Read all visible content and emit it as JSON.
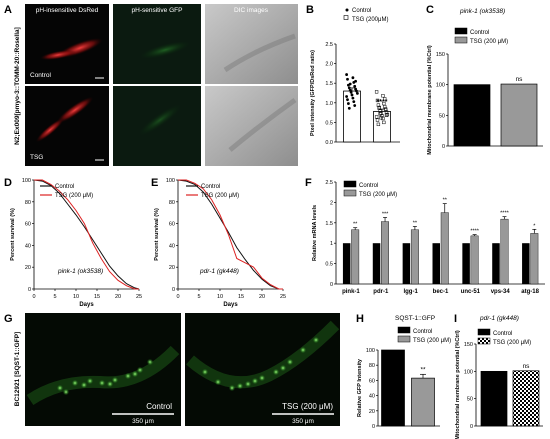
{
  "panels": {
    "A": {
      "letter": "A",
      "col_titles": [
        "pH-insensitive DsRed",
        "pH-sensitive GFP",
        "DIC images"
      ],
      "row_title": "N2;Ex009[pmyo-3::TOMM-20::Rosella]",
      "row_labels": [
        "Control",
        "TSG"
      ]
    },
    "B": {
      "letter": "B"
    },
    "C": {
      "letter": "C",
      "strain": "pink-1 (ok3538)"
    },
    "D": {
      "letter": "D",
      "strain": "pink-1 (ok3538)"
    },
    "E": {
      "letter": "E",
      "strain": "pdr-1 (gk448)"
    },
    "F": {
      "letter": "F"
    },
    "G": {
      "letter": "G",
      "row_title": "BC12921 [SQST-1::GFP]",
      "labels": [
        "Control",
        "TSG (200 μM)"
      ],
      "scale": [
        "350 μm",
        "350 μm"
      ]
    },
    "H": {
      "letter": "H",
      "title": "SQST-1::GFP"
    },
    "I": {
      "letter": "I",
      "strain": "pdr-1 (gk448)"
    }
  },
  "colors": {
    "control": "#111111",
    "tsg": "#dd2222",
    "gray": "#999999"
  },
  "chart_data": [
    {
      "id": "B",
      "type": "bar",
      "categories": [
        "Control",
        "TSG (200μM)"
      ],
      "values": [
        1.3,
        0.78
      ],
      "errors": [
        0.08,
        0.06
      ],
      "ylabel": "Pixel intensity (GFP/DsRed ratio)",
      "ylim": [
        0.0,
        2.5
      ],
      "yticks": [
        "0.0",
        "0.5",
        "1.0",
        "1.5",
        "2.0",
        "2.5"
      ],
      "legend": [
        "Control",
        "TSG (200μM)"
      ],
      "annotations": [
        "****"
      ],
      "scatter": [
        [
          1.72,
          1.64,
          1.6,
          1.52,
          1.45,
          1.42,
          1.38,
          1.35,
          1.32,
          1.3,
          1.27,
          1.24,
          1.2,
          1.16,
          1.12,
          1.08,
          1.03,
          0.98,
          0.93,
          0.86,
          1.55,
          1.48
        ],
        [
          1.28,
          1.18,
          1.06,
          0.98,
          0.94,
          0.9,
          0.86,
          0.82,
          0.79,
          0.76,
          0.73,
          0.7,
          0.67,
          0.64,
          0.6,
          0.56,
          0.5,
          0.45,
          1.1,
          0.88,
          0.84,
          0.72,
          0.68,
          0.62
        ]
      ]
    },
    {
      "id": "C",
      "type": "bar",
      "categories": [
        "Control",
        "TSG (200 μM)"
      ],
      "values": [
        100,
        101
      ],
      "ylabel": "Mitochondrial membrane potential (%Ctrl)",
      "ylim": [
        0,
        150
      ],
      "yticks": [
        "0",
        "50",
        "100",
        "150"
      ],
      "legend": [
        "Control",
        "TSG (200 μM)"
      ],
      "annotations": [
        "ns"
      ]
    },
    {
      "id": "D",
      "type": "line",
      "xlabel": "Days",
      "ylabel": "Percent survival (%)",
      "xlim": [
        0,
        25
      ],
      "ylim": [
        0,
        100
      ],
      "xticks": [
        "0",
        "5",
        "10",
        "15",
        "20",
        "25"
      ],
      "yticks": [
        "0",
        "20",
        "40",
        "60",
        "80",
        "100"
      ],
      "series": [
        {
          "name": "Control",
          "x": [
            0,
            2,
            4,
            6,
            8,
            10,
            12,
            14,
            16,
            18,
            20,
            22,
            24,
            25
          ],
          "y": [
            100,
            99,
            95,
            88,
            78,
            68,
            57,
            45,
            33,
            21,
            12,
            5,
            1,
            0
          ]
        },
        {
          "name": "TSG (200 μM)",
          "x": [
            0,
            2,
            4,
            6,
            8,
            10,
            12,
            14,
            16,
            18,
            20,
            22,
            24,
            25
          ],
          "y": [
            100,
            100,
            96,
            90,
            82,
            72,
            60,
            42,
            28,
            16,
            8,
            3,
            0,
            0
          ]
        }
      ]
    },
    {
      "id": "E",
      "type": "line",
      "xlabel": "Days",
      "ylabel": "Percent survival (%)",
      "xlim": [
        0,
        25
      ],
      "ylim": [
        0,
        100
      ],
      "xticks": [
        "0",
        "5",
        "10",
        "15",
        "20",
        "25"
      ],
      "yticks": [
        "0",
        "20",
        "40",
        "60",
        "80",
        "100"
      ],
      "series": [
        {
          "name": "Control",
          "x": [
            0,
            2,
            4,
            6,
            8,
            10,
            12,
            14,
            16,
            18,
            20,
            22,
            24,
            25
          ],
          "y": [
            100,
            99,
            96,
            89,
            78,
            65,
            52,
            38,
            27,
            17,
            9,
            3,
            0,
            0
          ]
        },
        {
          "name": "TSG (200 μM)",
          "x": [
            0,
            2,
            4,
            6,
            8,
            10,
            12,
            14,
            16,
            18,
            20,
            22,
            24,
            25
          ],
          "y": [
            100,
            100,
            97,
            92,
            82,
            68,
            50,
            28,
            24,
            20,
            10,
            4,
            0,
            0
          ]
        }
      ]
    },
    {
      "id": "F",
      "type": "bar",
      "categories": [
        "pink-1",
        "pdr-1",
        "lgg-1",
        "bec-1",
        "unc-51",
        "vps-34",
        "atg-18"
      ],
      "ylabel": "Relative mRNA levels",
      "ylim": [
        0,
        2.5
      ],
      "yticks": [
        "0",
        "0.5",
        "1",
        "1.5",
        "2",
        "2.5"
      ],
      "series": [
        {
          "name": "Control",
          "values": [
            1,
            1,
            1,
            1,
            1,
            1,
            1
          ]
        },
        {
          "name": "TSG (200 μM)",
          "values": [
            1.33,
            1.53,
            1.33,
            1.75,
            1.18,
            1.59,
            1.24
          ]
        }
      ],
      "errors": [
        0.05,
        0.1,
        0.08,
        0.22,
        0.03,
        0.06,
        0.1
      ],
      "annotations": [
        "**",
        "***",
        "**",
        "**",
        "****",
        "****",
        "*"
      ]
    },
    {
      "id": "H",
      "type": "bar",
      "categories": [
        "Control",
        "TSG (200 μM)"
      ],
      "values": [
        100,
        63
      ],
      "errors": [
        0,
        5
      ],
      "ylabel": "Relative GFP Intensity",
      "ylim": [
        0,
        100
      ],
      "yticks": [
        "0",
        "20",
        "40",
        "60",
        "80",
        "100"
      ],
      "legend": [
        "Control",
        "TSG (200 μM)"
      ],
      "annotations": [
        "**"
      ]
    },
    {
      "id": "I",
      "type": "bar",
      "categories": [
        "Control",
        "TSG (200 μM)"
      ],
      "values": [
        100,
        101
      ],
      "ylabel": "Mitochondrial membrane potential (%Ctrl)",
      "ylim": [
        0,
        150
      ],
      "yticks": [
        "0",
        "50",
        "100",
        "150"
      ],
      "legend": [
        "Control",
        "TSG (200 μM)"
      ],
      "annotations": [
        "ns"
      ]
    }
  ]
}
